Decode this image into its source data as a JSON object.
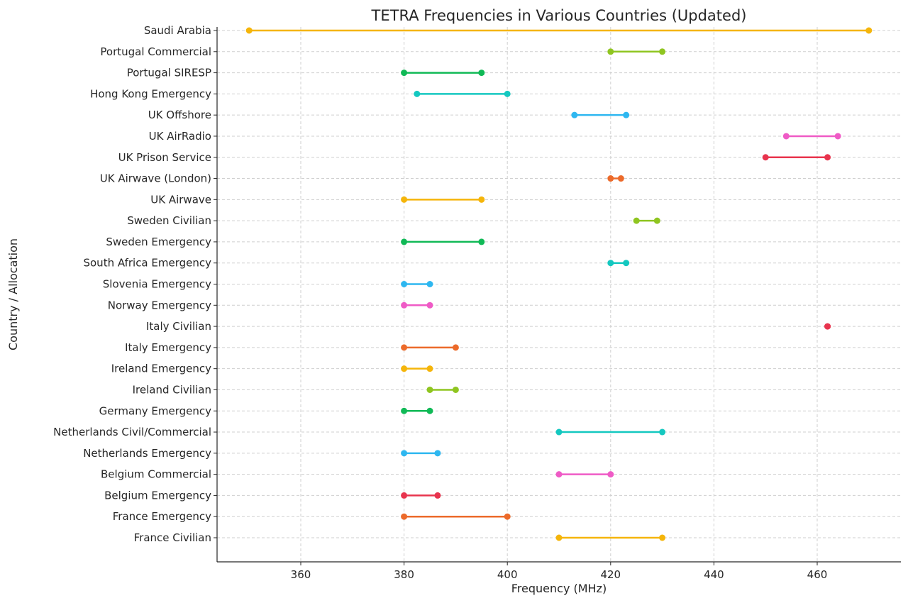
{
  "chart_data": {
    "type": "dumbbell",
    "title": "TETRA Frequencies in Various Countries (Updated)",
    "xlabel": "Frequency (MHz)",
    "ylabel": "Country / Allocation",
    "xlim": [
      344,
      476
    ],
    "xticks": [
      360,
      380,
      400,
      420,
      440,
      460
    ],
    "grid": true,
    "categories": [
      "France Civilian",
      "France Emergency",
      "Belgium Emergency",
      "Belgium Commercial",
      "Netherlands Emergency",
      "Netherlands Civil/Commercial",
      "Germany Emergency",
      "Ireland Civilian",
      "Ireland Emergency",
      "Italy Emergency",
      "Italy Civilian",
      "Norway Emergency",
      "Slovenia Emergency",
      "South Africa Emergency",
      "Sweden Emergency",
      "Sweden Civilian",
      "UK Airwave",
      "UK Airwave (London)",
      "UK Prison Service",
      "UK AirRadio",
      "UK Offshore",
      "Hong Kong Emergency",
      "Portugal SIRESP",
      "Portugal Commercial",
      "Saudi Arabia"
    ],
    "ranges": [
      [
        410,
        430
      ],
      [
        380,
        400
      ],
      [
        380,
        386.5
      ],
      [
        410,
        420
      ],
      [
        380,
        386.5
      ],
      [
        410,
        430
      ],
      [
        380,
        385
      ],
      [
        385,
        390
      ],
      [
        380,
        385
      ],
      [
        380,
        390
      ],
      [
        462,
        462
      ],
      [
        380,
        385
      ],
      [
        380,
        385
      ],
      [
        420,
        423
      ],
      [
        380,
        395
      ],
      [
        425,
        429
      ],
      [
        380,
        395
      ],
      [
        420,
        422
      ],
      [
        450,
        462
      ],
      [
        454,
        464
      ],
      [
        413,
        423
      ],
      [
        382.5,
        400
      ],
      [
        380,
        395
      ],
      [
        420,
        430
      ],
      [
        350,
        470
      ]
    ],
    "colors": [
      "#f5b50a",
      "#ec6a2a",
      "#e8344e",
      "#ef5bc6",
      "#2eb7f0",
      "#14c8c0",
      "#10b956",
      "#8fc520"
    ]
  }
}
